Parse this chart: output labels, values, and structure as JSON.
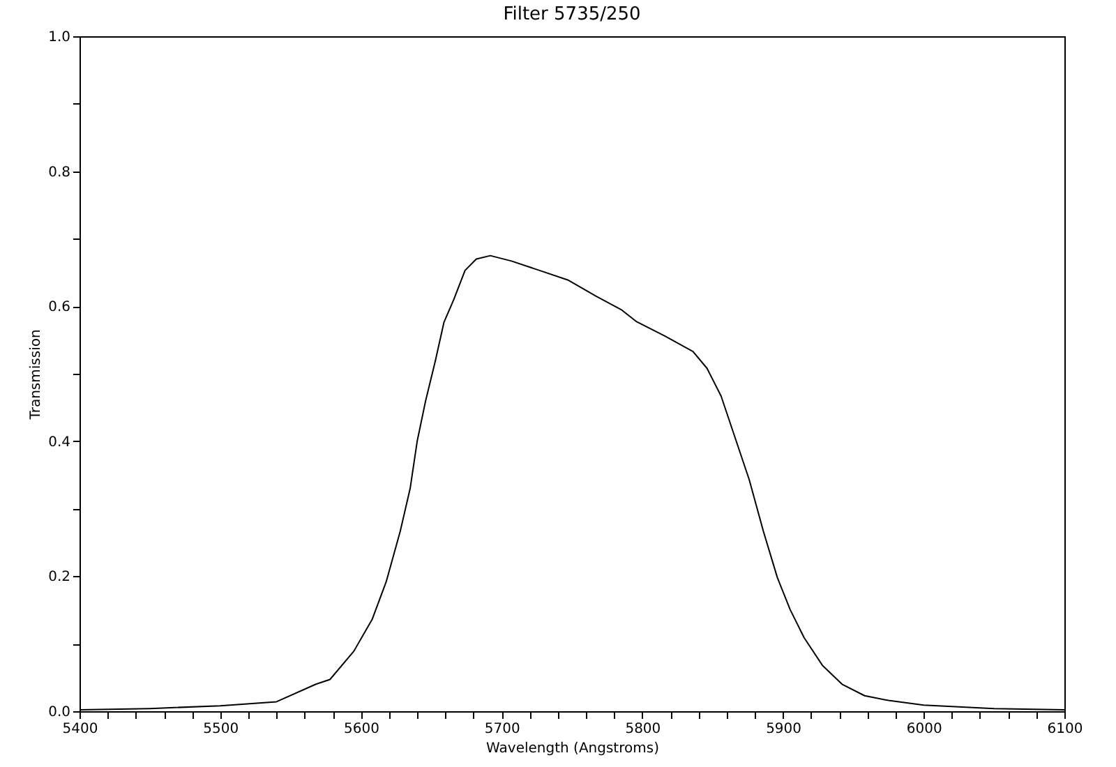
{
  "chart_data": {
    "type": "line",
    "title": "Filter 5735/250",
    "xlabel": "Wavelength (Angstroms)",
    "ylabel": "Transmission",
    "x": [
      5400,
      5450,
      5500,
      5540,
      5568,
      5578,
      5595,
      5608,
      5618,
      5628,
      5635,
      5640,
      5646,
      5653,
      5659,
      5666,
      5674,
      5682,
      5692,
      5707,
      5727,
      5747,
      5767,
      5785,
      5796,
      5816,
      5836,
      5846,
      5856,
      5866,
      5876,
      5886,
      5896,
      5905,
      5915,
      5928,
      5942,
      5958,
      5975,
      6000,
      6050,
      6100
    ],
    "series": [
      {
        "color": "#000000",
        "values": [
          0.002,
          0.004,
          0.008,
          0.014,
          0.04,
          0.047,
          0.089,
          0.136,
          0.192,
          0.267,
          0.33,
          0.4,
          0.46,
          0.52,
          0.576,
          0.61,
          0.653,
          0.67,
          0.675,
          0.667,
          0.653,
          0.639,
          0.615,
          0.595,
          0.577,
          0.556,
          0.533,
          0.508,
          0.467,
          0.405,
          0.343,
          0.267,
          0.198,
          0.151,
          0.109,
          0.068,
          0.04,
          0.023,
          0.016,
          0.009,
          0.004,
          0.002
        ]
      }
    ],
    "xlim": [
      5400,
      6100
    ],
    "xticks": [
      5400,
      {
        "value": 5420,
        "label": null
      },
      {
        "value": 5440,
        "label": null
      },
      {
        "value": 5460,
        "label": null
      },
      {
        "value": 5480,
        "label": null
      },
      5500,
      {
        "value": 5520,
        "label": null
      },
      {
        "value": 5540,
        "label": null
      },
      {
        "value": 5560,
        "label": null
      },
      {
        "value": 5580,
        "label": null
      },
      5600,
      {
        "value": 5620,
        "label": null
      },
      {
        "value": 5640,
        "label": null
      },
      {
        "value": 5660,
        "label": null
      },
      {
        "value": 5680,
        "label": null
      },
      5700,
      {
        "value": 5720,
        "label": null
      },
      {
        "value": 5740,
        "label": null
      },
      {
        "value": 5760,
        "label": null
      },
      {
        "value": 5780,
        "label": null
      },
      5800,
      {
        "value": 5820,
        "label": null
      },
      {
        "value": 5840,
        "label": null
      },
      {
        "value": 5860,
        "label": null
      },
      {
        "value": 5880,
        "label": null
      },
      5900,
      {
        "value": 5920,
        "label": null
      },
      {
        "value": 5940,
        "label": null
      },
      {
        "value": 5960,
        "label": null
      },
      {
        "value": 5980,
        "label": null
      },
      6000,
      {
        "value": 6020,
        "label": null
      },
      {
        "value": 6040,
        "label": null
      },
      {
        "value": 6060,
        "label": null
      },
      {
        "value": 6080,
        "label": null
      },
      6100
    ],
    "ylim": [
      0,
      1
    ],
    "yticks": [
      {
        "value": 0,
        "label": "0.0"
      },
      {
        "value": 0.1,
        "label": null
      },
      0.2,
      {
        "value": 0.3,
        "label": null
      },
      0.4,
      {
        "value": 0.5,
        "label": null
      },
      0.6,
      {
        "value": 0.7,
        "label": null
      },
      0.8,
      {
        "value": 0.9,
        "label": null
      },
      {
        "value": 1,
        "label": "1.0"
      }
    ],
    "grid": false,
    "marker": "none",
    "line_style": "solid"
  }
}
